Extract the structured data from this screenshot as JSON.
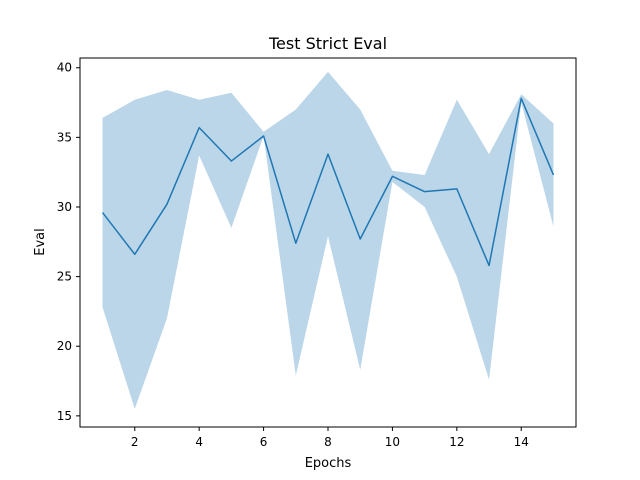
{
  "chart_data": {
    "type": "line",
    "title": "Test Strict Eval",
    "xlabel": "Epochs",
    "ylabel": "Eval",
    "xlim": [
      0.3,
      15.7
    ],
    "ylim": [
      14.2,
      40.7
    ],
    "xticks": [
      2,
      4,
      6,
      8,
      10,
      12,
      14
    ],
    "yticks": [
      15,
      20,
      25,
      30,
      35,
      40
    ],
    "grid": false,
    "series": [
      {
        "x": [
          1,
          2,
          3,
          4,
          5,
          6,
          7,
          8,
          9,
          10,
          11,
          12,
          13,
          14,
          15
        ],
        "values": [
          29.6,
          26.6,
          30.2,
          35.7,
          33.3,
          35.1,
          27.4,
          33.8,
          27.7,
          32.2,
          31.1,
          31.3,
          25.8,
          37.8,
          32.3
        ],
        "lower": [
          22.8,
          15.5,
          22.0,
          33.7,
          28.5,
          35.1,
          17.9,
          27.9,
          18.3,
          31.8,
          30.0,
          25.0,
          17.6,
          37.5,
          28.6
        ],
        "upper": [
          36.4,
          37.7,
          38.4,
          37.7,
          38.2,
          35.4,
          37.0,
          39.7,
          37.0,
          32.6,
          32.3,
          37.7,
          33.8,
          38.1,
          36.0
        ],
        "color": "#1f77b4",
        "band_color": "#1f77b4",
        "band_opacity": 0.3
      }
    ]
  }
}
